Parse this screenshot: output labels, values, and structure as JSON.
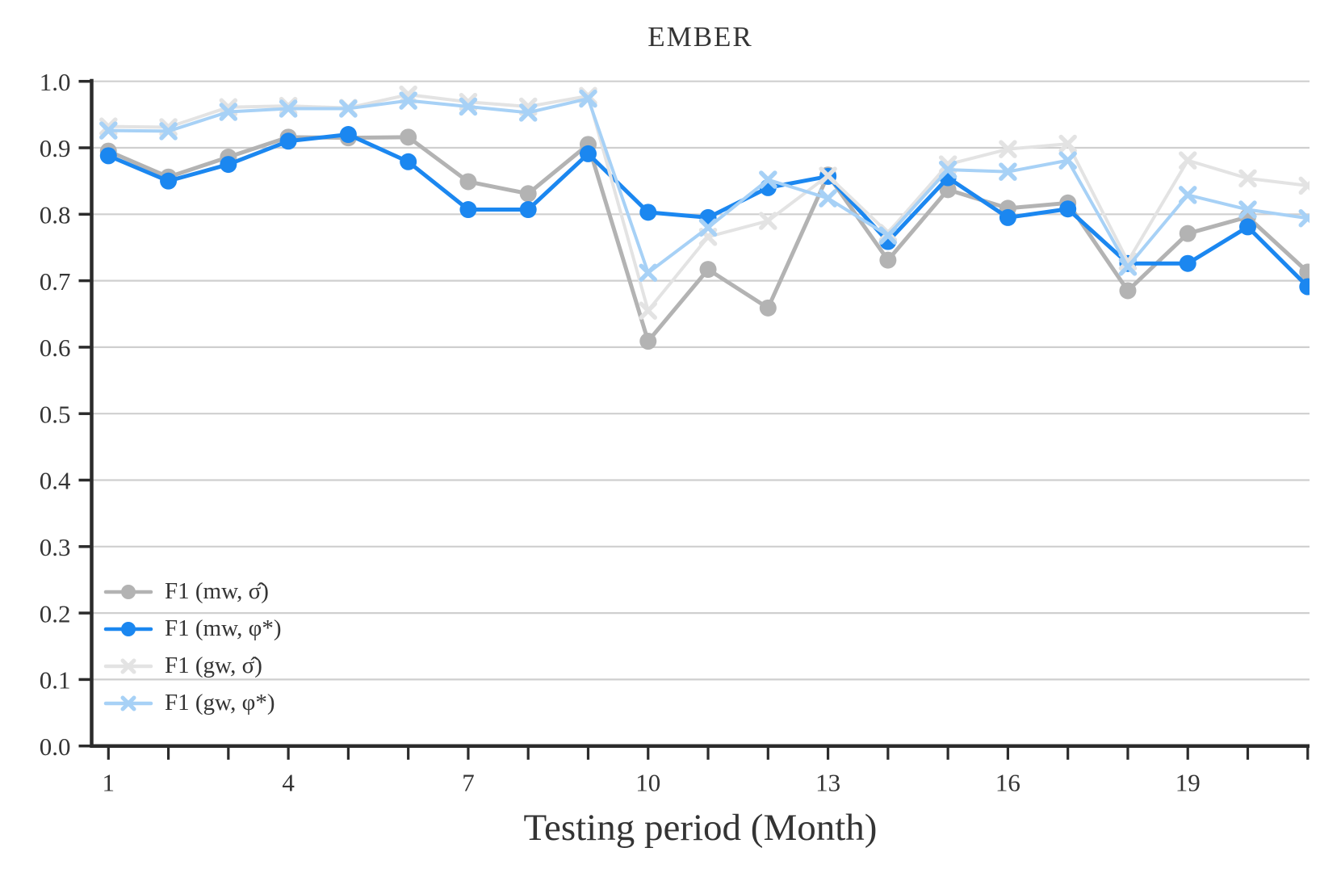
{
  "title": "EMBER",
  "xlabel": "Testing period (Month)",
  "chart_data": {
    "type": "line",
    "x": [
      1,
      2,
      3,
      4,
      5,
      6,
      7,
      8,
      9,
      10,
      11,
      12,
      13,
      14,
      15,
      16,
      17,
      18,
      19,
      20,
      21
    ],
    "series": [
      {
        "name": "F1 (mw, σ̂)",
        "marker": "circle",
        "color": "#b3b3b3",
        "values": [
          0.895,
          0.856,
          0.886,
          0.916,
          0.915,
          0.916,
          0.849,
          0.831,
          0.905,
          0.609,
          0.717,
          0.659,
          0.859,
          0.731,
          0.837,
          0.809,
          0.817,
          0.685,
          0.771,
          0.796,
          0.713
        ]
      },
      {
        "name": "F1 (mw, φ*)",
        "marker": "circle",
        "color": "#1b87f0",
        "values": [
          0.888,
          0.85,
          0.875,
          0.91,
          0.92,
          0.879,
          0.807,
          0.807,
          0.891,
          0.803,
          0.795,
          0.84,
          0.857,
          0.759,
          0.855,
          0.795,
          0.808,
          0.726,
          0.726,
          0.781,
          0.691
        ]
      },
      {
        "name": "F1 (gw, σ̂)",
        "marker": "x",
        "color": "#e3e3e3",
        "values": [
          0.932,
          0.931,
          0.961,
          0.963,
          0.96,
          0.98,
          0.969,
          0.962,
          0.978,
          0.655,
          0.766,
          0.79,
          0.858,
          0.772,
          0.875,
          0.898,
          0.906,
          0.729,
          0.881,
          0.854,
          0.843
        ]
      },
      {
        "name": "F1 (gw, φ*)",
        "marker": "x",
        "color": "#a7d1f6",
        "values": [
          0.926,
          0.925,
          0.954,
          0.959,
          0.959,
          0.971,
          0.962,
          0.953,
          0.974,
          0.712,
          0.78,
          0.852,
          0.824,
          0.768,
          0.867,
          0.864,
          0.881,
          0.721,
          0.829,
          0.807,
          0.794
        ]
      }
    ],
    "ylim": [
      0.0,
      1.0
    ],
    "xlim": [
      0.72,
      21.03
    ],
    "yticks": [
      "0.0",
      "0.1",
      "0.2",
      "0.3",
      "0.4",
      "0.5",
      "0.6",
      "0.7",
      "0.8",
      "0.9",
      "1.0"
    ],
    "xticks_minor_every_month": true,
    "xtick_labels": [
      "1",
      "4",
      "7",
      "10",
      "13",
      "16",
      "19"
    ],
    "xtick_label_positions": [
      1,
      4,
      7,
      10,
      13,
      16,
      19
    ],
    "grid": "horizontal",
    "legend_position": "lower-left"
  },
  "style_colors": {
    "grid": "#cfcfcf",
    "spine": "#2b2b2b",
    "tick_text": "#343434",
    "background": "#ffffff"
  }
}
